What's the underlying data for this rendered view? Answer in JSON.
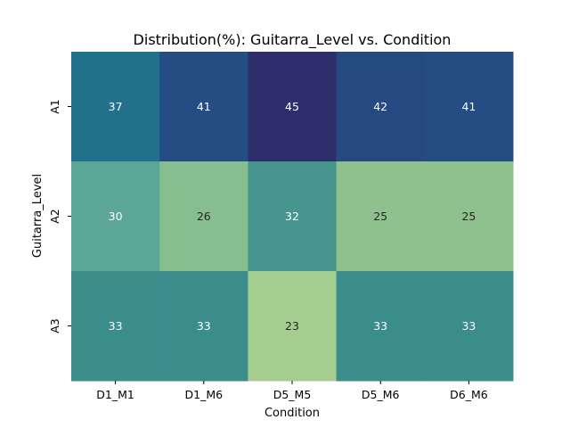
{
  "chart_data": {
    "type": "heatmap",
    "title": "Distribution(%): Guitarra_Level vs. Condition",
    "xlabel": "Condition",
    "ylabel": "Guitarra_Level",
    "x_categories": [
      "D1_M1",
      "D1_M6",
      "D5_M5",
      "D5_M6",
      "D6_M6"
    ],
    "y_categories": [
      "A1",
      "A2",
      "A3"
    ],
    "values": [
      [
        37,
        41,
        45,
        42,
        41
      ],
      [
        30,
        26,
        32,
        25,
        25
      ],
      [
        33,
        33,
        23,
        33,
        33
      ]
    ],
    "colormap": "crest",
    "color_range": [
      23,
      45
    ],
    "colorbar": false,
    "annotated": true,
    "colors": {
      "low": "#a5cd8e",
      "high": "#2c2f6b",
      "light_text": "#ffffff",
      "dark_text": "#262626"
    }
  }
}
